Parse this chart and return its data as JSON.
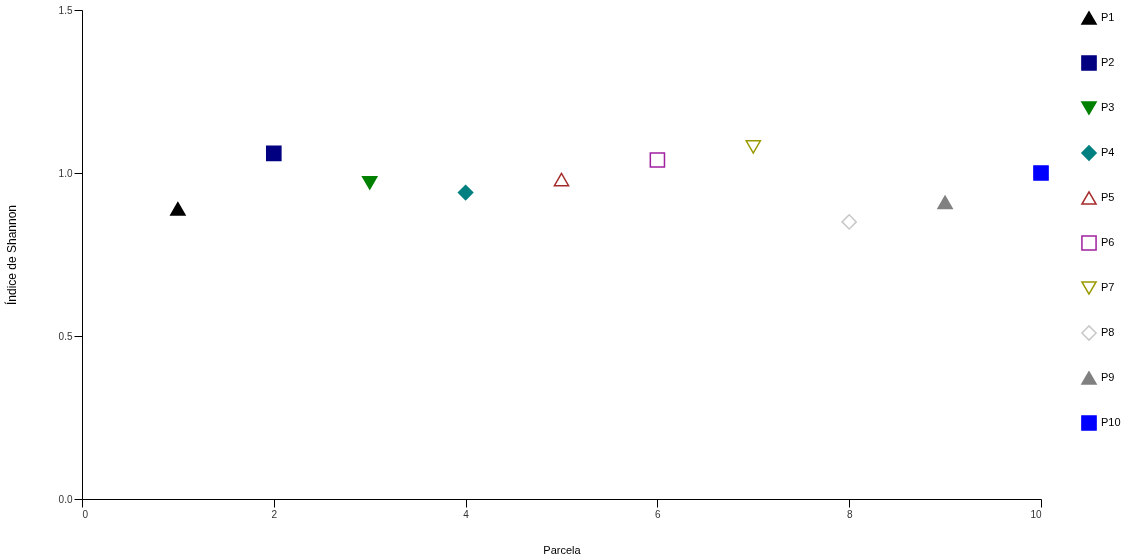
{
  "chart_data": {
    "type": "scatter",
    "xlabel": "Parcela",
    "ylabel": "Índice de Shannon",
    "xlim": [
      0,
      10
    ],
    "xticks": [
      0,
      2,
      4,
      6,
      8,
      10
    ],
    "ylim": [
      0,
      1.5
    ],
    "yticks": [
      {
        "value": 0,
        "label": "0.0"
      },
      {
        "value": 0.5,
        "label": "0.5"
      },
      {
        "value": 1,
        "label": "1.0"
      },
      {
        "value": 1.5,
        "label": "1.5"
      }
    ],
    "grid": false,
    "legend": "right",
    "series": [
      {
        "name": "P1",
        "color": "#000000",
        "marker": "triangle",
        "x": [
          1
        ],
        "values": [
          0.89
        ]
      },
      {
        "name": "P2",
        "color": "#000080",
        "marker": "square",
        "x": [
          2
        ],
        "values": [
          1.06
        ]
      },
      {
        "name": "P3",
        "color": "#008000",
        "marker": "triangle-down",
        "x": [
          3
        ],
        "values": [
          0.97
        ]
      },
      {
        "name": "P4",
        "color": "#008080",
        "marker": "diamond",
        "x": [
          4
        ],
        "values": [
          0.94
        ]
      },
      {
        "name": "P5",
        "color": "#a52a2a",
        "marker": "triangle-open",
        "x": [
          5
        ],
        "values": [
          0.98
        ]
      },
      {
        "name": "P6",
        "color": "#a020a0",
        "marker": "square-open",
        "x": [
          6
        ],
        "values": [
          1.04
        ]
      },
      {
        "name": "P7",
        "color": "#999900",
        "marker": "triangle-down-open",
        "x": [
          7
        ],
        "values": [
          1.08
        ]
      },
      {
        "name": "P8",
        "color": "#c8c8c8",
        "marker": "diamond-open",
        "x": [
          8
        ],
        "values": [
          0.85
        ]
      },
      {
        "name": "P9",
        "color": "#808080",
        "marker": "triangle",
        "x": [
          9
        ],
        "values": [
          0.91
        ]
      },
      {
        "name": "P10",
        "color": "#0000ff",
        "marker": "square",
        "x": [
          10
        ],
        "values": [
          1.0
        ]
      }
    ]
  }
}
